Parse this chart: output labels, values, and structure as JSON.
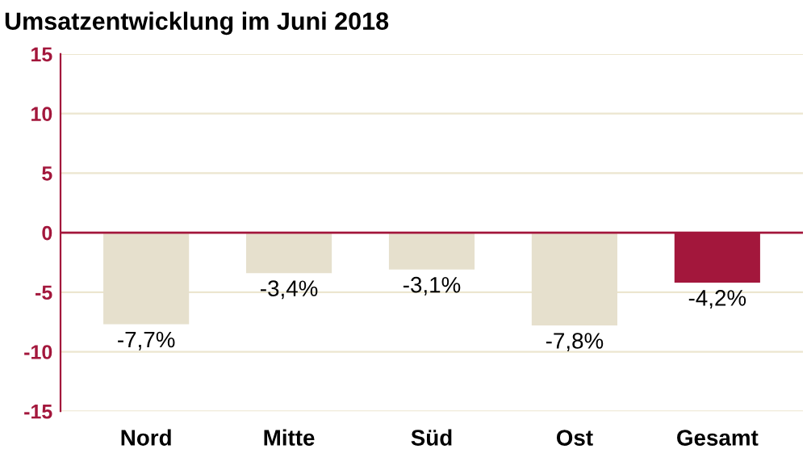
{
  "chart_data": {
    "type": "bar",
    "title": "Umsatzentwicklung im Juni 2018",
    "categories": [
      "Nord",
      "Mitte",
      "Süd",
      "Ost",
      "Gesamt"
    ],
    "values": [
      -7.7,
      -3.4,
      -3.1,
      -7.8,
      -4.2
    ],
    "colors": [
      "#e6e0cd",
      "#e6e0cd",
      "#e6e0cd",
      "#e6e0cd",
      "#a3173c"
    ],
    "value_labels": [
      "-7,7%",
      "-3,4%",
      "-3,1%",
      "-7,8%",
      "-4,2%"
    ],
    "ylim": [
      -15,
      15
    ],
    "yticks": [
      -15,
      -10,
      -5,
      0,
      5,
      10,
      15
    ],
    "grid": "y",
    "ref_lines": [
      {
        "axis": "y",
        "value": 0,
        "color": "#a3173c"
      }
    ]
  }
}
